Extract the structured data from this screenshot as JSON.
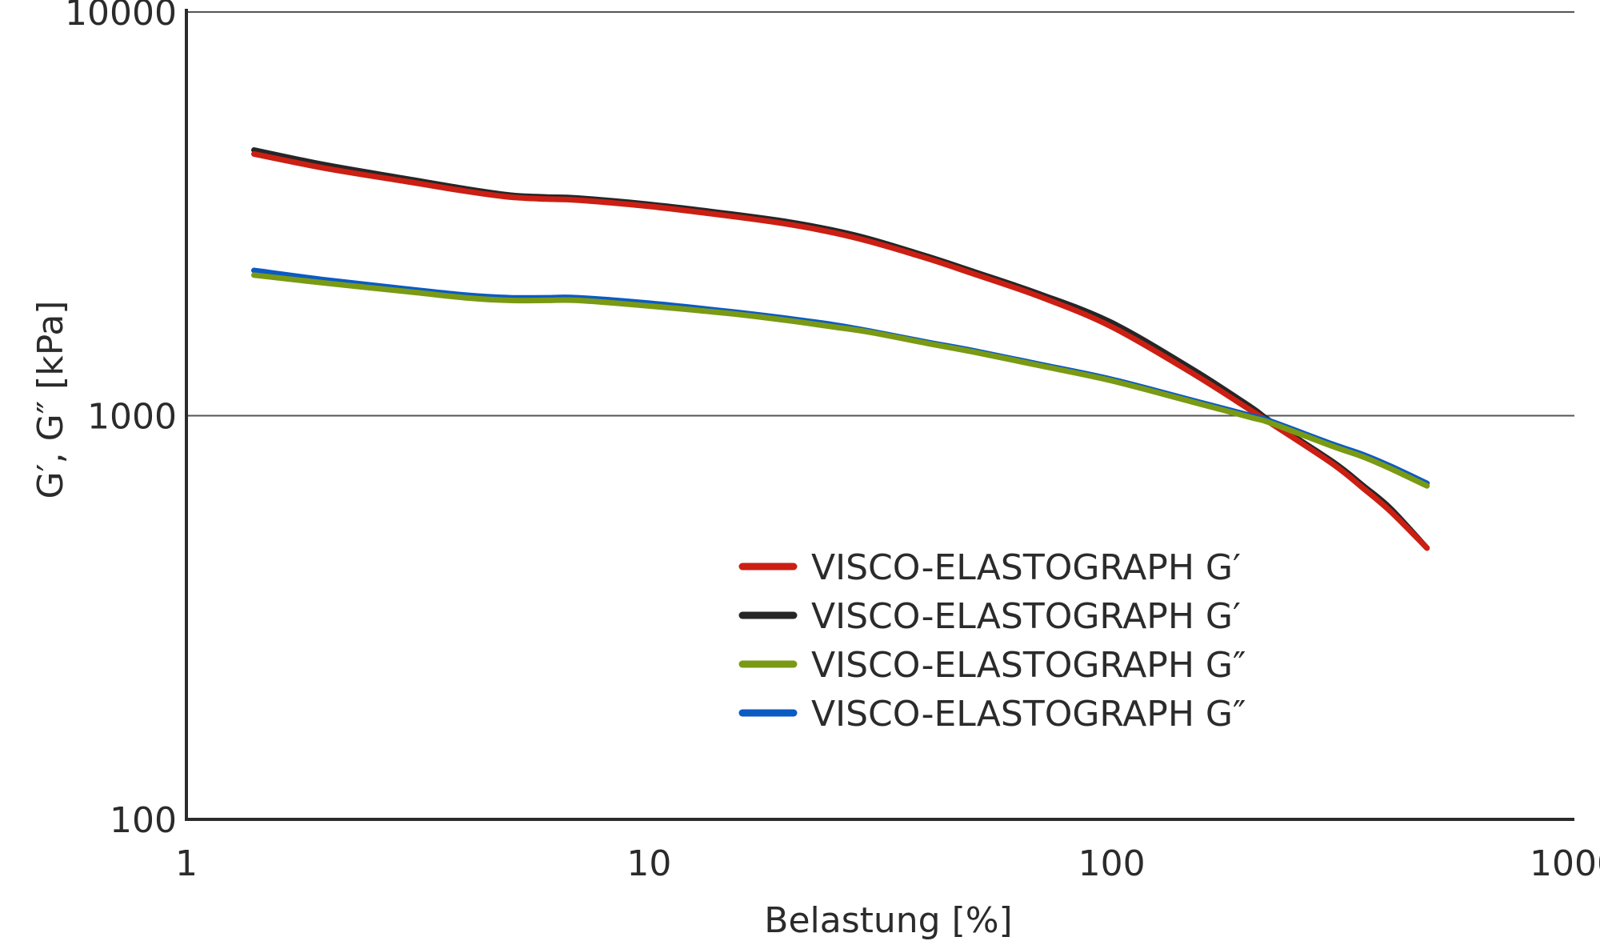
{
  "chart_data": {
    "type": "line",
    "title": "",
    "xlabel": "Belastung [%]",
    "ylabel": "G′, G″ [kPa]",
    "x_scale": "log",
    "y_scale": "log",
    "xlim": [
      1,
      1000
    ],
    "ylim": [
      100,
      10000
    ],
    "x_ticks": [
      1,
      10,
      100,
      1000
    ],
    "x_tick_labels": [
      "1",
      "10",
      "100",
      "1000"
    ],
    "y_ticks": [
      100,
      1000,
      10000
    ],
    "y_tick_labels": [
      "100",
      "1000",
      "10000"
    ],
    "grid": "horizontal major",
    "legend_position": "center",
    "x": [
      1.4,
      2,
      3,
      4,
      5,
      6,
      7,
      10,
      15,
      20,
      25,
      30,
      40,
      50,
      70,
      100,
      150,
      200,
      220,
      300,
      350,
      400,
      480
    ],
    "series": [
      {
        "name": "VISCO-ELASTOGRAPH G′",
        "color": "#cc1f14",
        "values": [
          4450,
          4100,
          3800,
          3600,
          3480,
          3440,
          3420,
          3300,
          3120,
          2980,
          2840,
          2700,
          2450,
          2250,
          1970,
          1660,
          1270,
          1030,
          960,
          760,
          660,
          580,
          470
        ]
      },
      {
        "name": "VISCO-ELASTOGRAPH G′",
        "color": "#262626",
        "values": [
          4550,
          4180,
          3860,
          3650,
          3520,
          3480,
          3460,
          3340,
          3160,
          3020,
          2880,
          2740,
          2480,
          2280,
          2000,
          1700,
          1300,
          1050,
          970,
          770,
          670,
          590,
          470
        ]
      },
      {
        "name": "VISCO-ELASTOGRAPH G″",
        "color": "#7a9a14",
        "values": [
          2230,
          2130,
          2030,
          1960,
          1930,
          1930,
          1930,
          1870,
          1790,
          1720,
          1660,
          1610,
          1510,
          1440,
          1330,
          1220,
          1080,
          990,
          960,
          840,
          790,
          740,
          670
        ]
      },
      {
        "name": "VISCO-ELASTOGRAPH G″",
        "color": "#0a5bc4",
        "values": [
          2290,
          2170,
          2060,
          1990,
          1960,
          1960,
          1960,
          1900,
          1810,
          1740,
          1680,
          1620,
          1520,
          1450,
          1340,
          1230,
          1090,
          1000,
          970,
          850,
          800,
          750,
          680
        ]
      }
    ]
  }
}
